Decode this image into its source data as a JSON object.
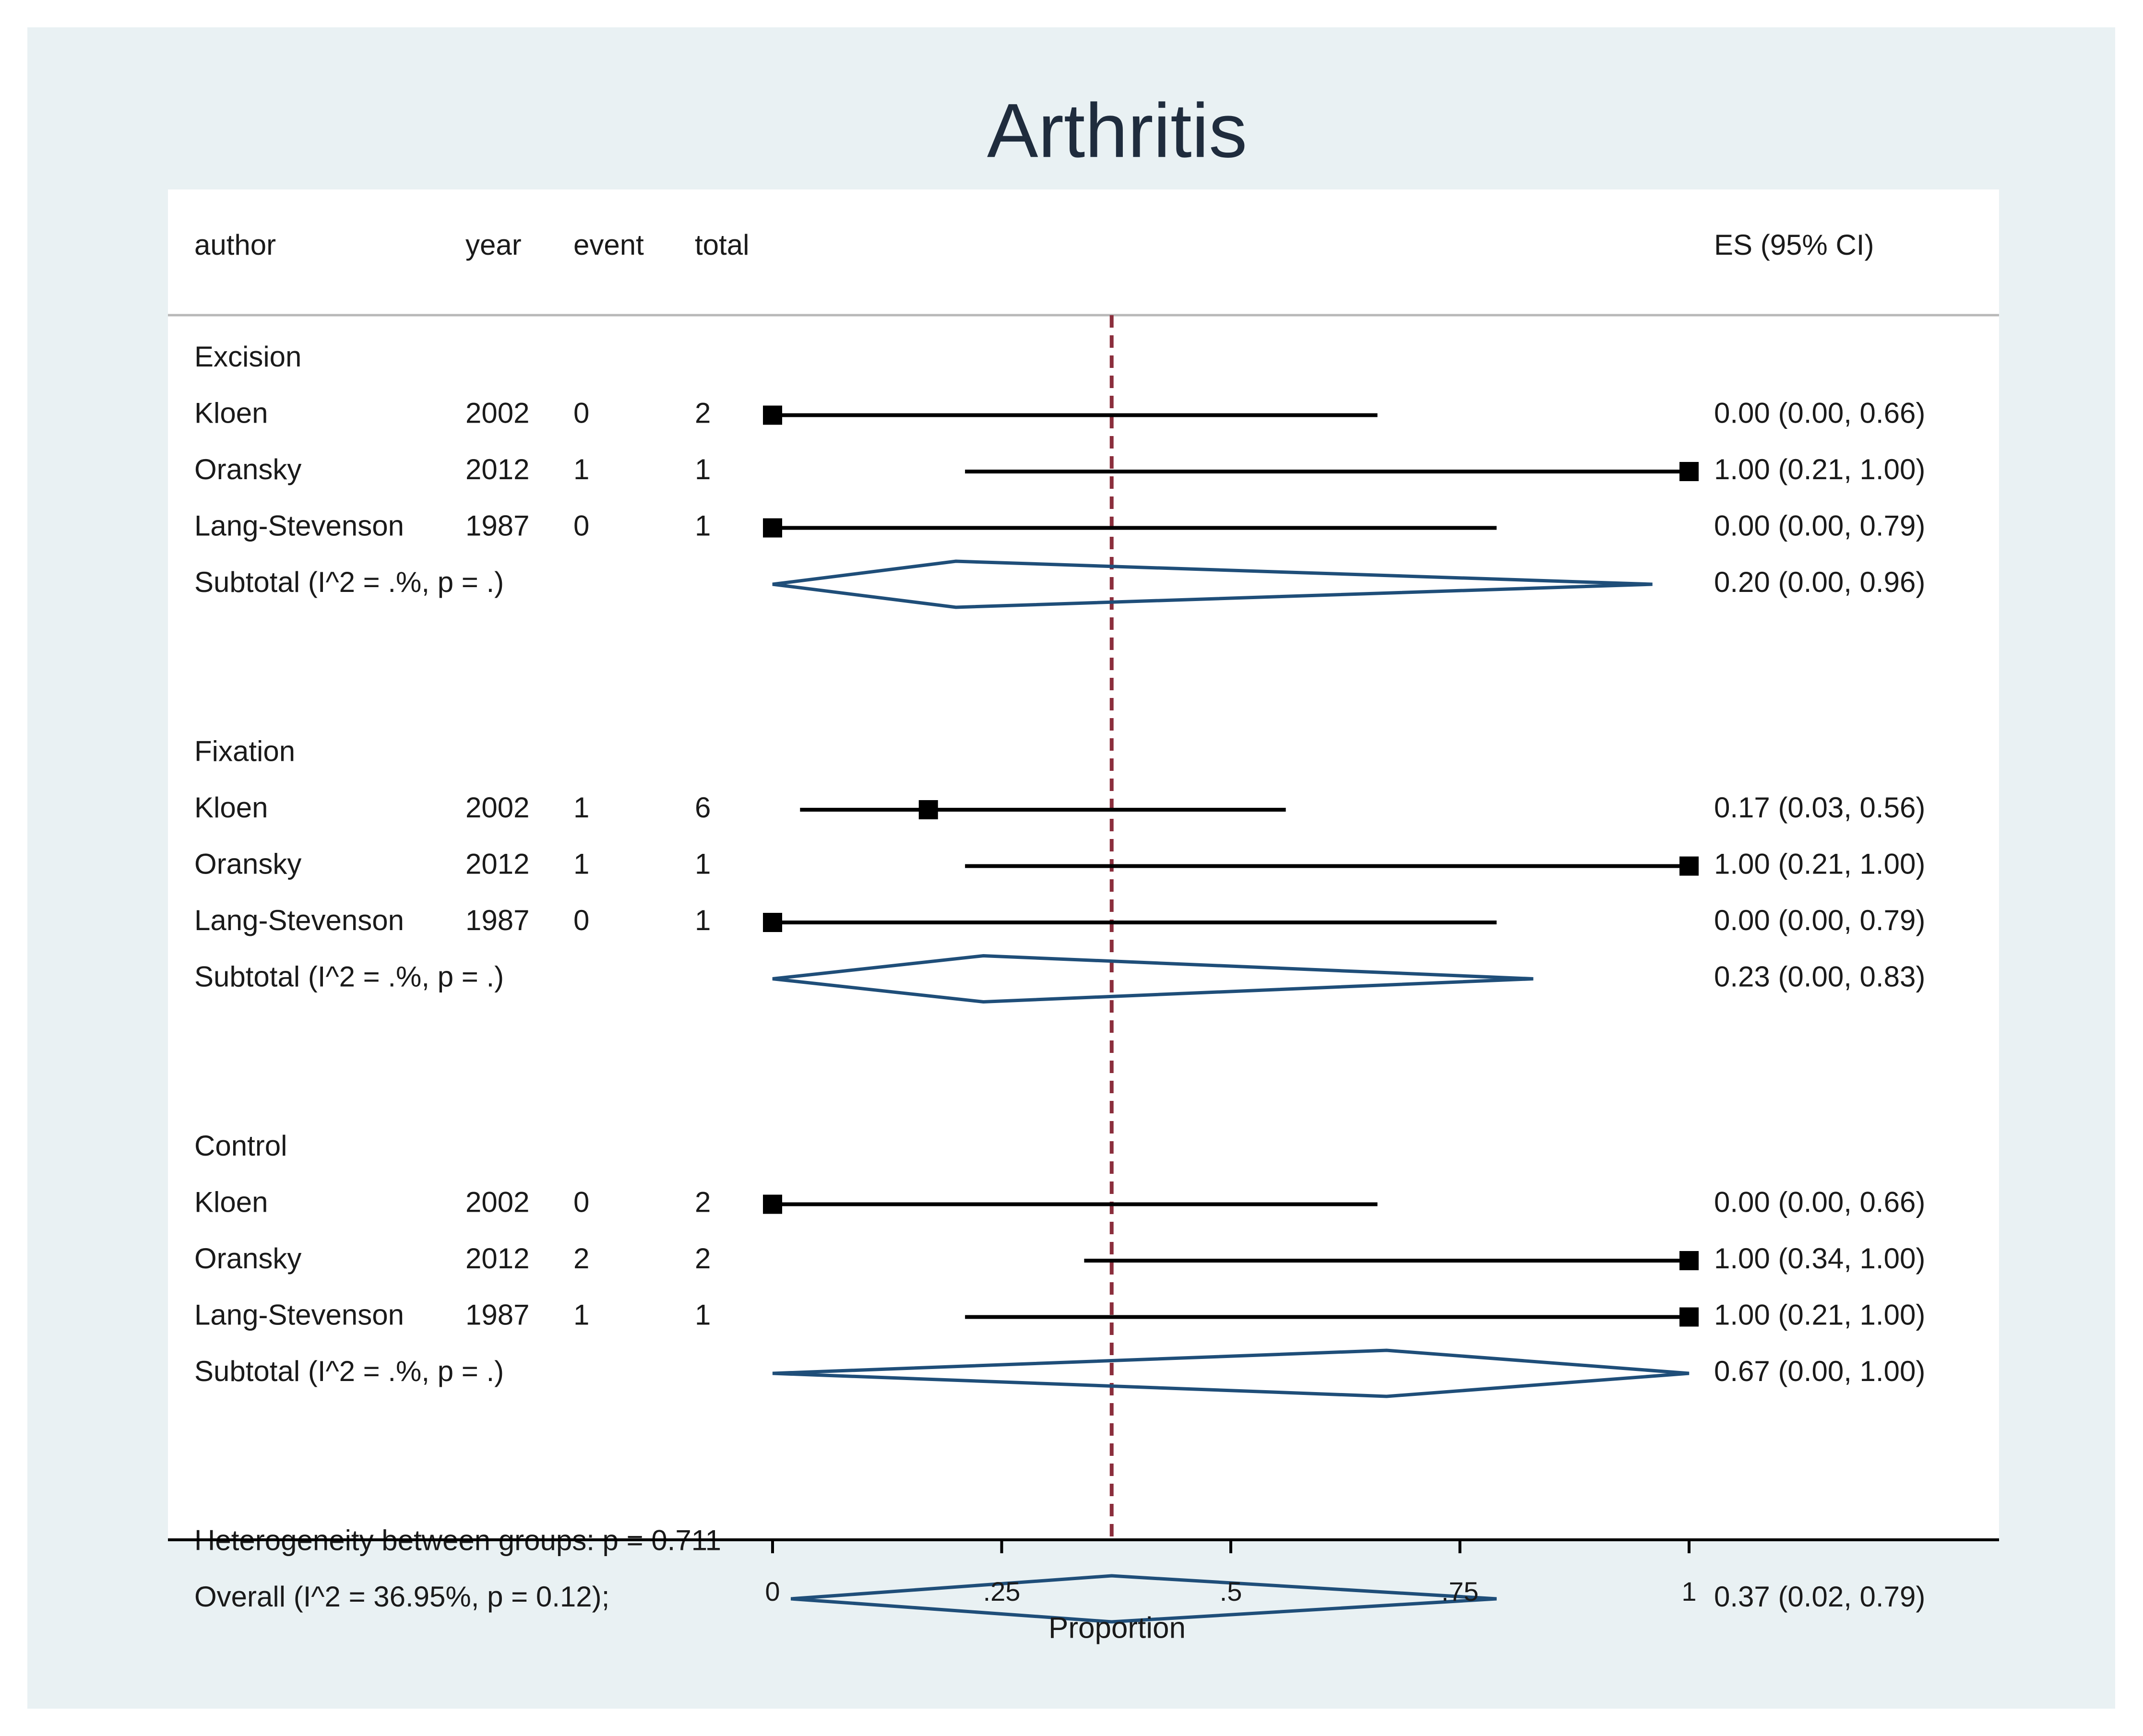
{
  "chart_data": {
    "type": "forest",
    "title": "Arthritis",
    "xlabel": "Proportion",
    "xlim": [
      0,
      1
    ],
    "x_ticks": [
      0,
      0.25,
      0.5,
      0.75,
      1
    ],
    "x_tick_labels": [
      "0",
      ".25",
      ".5",
      ".75",
      "1"
    ],
    "reference_line": 0.37,
    "columns": [
      "author",
      "year",
      "event",
      "total"
    ],
    "es_header": "ES (95% CI)",
    "groups": [
      {
        "name": "Excision",
        "studies": [
          {
            "author": "Kloen",
            "year": "2002",
            "event": "0",
            "total": "2",
            "es": 0.0,
            "lo": 0.0,
            "hi": 0.66,
            "label": "0.00 (0.00, 0.66)"
          },
          {
            "author": "Oransky",
            "year": "2012",
            "event": "1",
            "total": "1",
            "es": 1.0,
            "lo": 0.21,
            "hi": 1.0,
            "label": "1.00 (0.21, 1.00)"
          },
          {
            "author": "Lang-Stevenson",
            "year": "1987",
            "event": "0",
            "total": "1",
            "es": 0.0,
            "lo": 0.0,
            "hi": 0.79,
            "label": "0.00 (0.00, 0.79)"
          }
        ],
        "subtotal": {
          "text": "Subtotal  (I^2 = .%, p = .)",
          "es": 0.2,
          "lo": 0.0,
          "hi": 0.96,
          "label": "0.20 (0.00, 0.96)"
        }
      },
      {
        "name": "Fixation",
        "studies": [
          {
            "author": "Kloen",
            "year": "2002",
            "event": "1",
            "total": "6",
            "es": 0.17,
            "lo": 0.03,
            "hi": 0.56,
            "label": "0.17 (0.03, 0.56)"
          },
          {
            "author": "Oransky",
            "year": "2012",
            "event": "1",
            "total": "1",
            "es": 1.0,
            "lo": 0.21,
            "hi": 1.0,
            "label": "1.00 (0.21, 1.00)"
          },
          {
            "author": "Lang-Stevenson",
            "year": "1987",
            "event": "0",
            "total": "1",
            "es": 0.0,
            "lo": 0.0,
            "hi": 0.79,
            "label": "0.00 (0.00, 0.79)"
          }
        ],
        "subtotal": {
          "text": "Subtotal  (I^2 = .%, p = .)",
          "es": 0.23,
          "lo": 0.0,
          "hi": 0.83,
          "label": "0.23 (0.00, 0.83)"
        }
      },
      {
        "name": "Control",
        "studies": [
          {
            "author": "Kloen",
            "year": "2002",
            "event": "0",
            "total": "2",
            "es": 0.0,
            "lo": 0.0,
            "hi": 0.66,
            "label": "0.00 (0.00, 0.66)"
          },
          {
            "author": "Oransky",
            "year": "2012",
            "event": "2",
            "total": "2",
            "es": 1.0,
            "lo": 0.34,
            "hi": 1.0,
            "label": "1.00 (0.34, 1.00)"
          },
          {
            "author": "Lang-Stevenson",
            "year": "1987",
            "event": "1",
            "total": "1",
            "es": 1.0,
            "lo": 0.21,
            "hi": 1.0,
            "label": "1.00 (0.21, 1.00)"
          }
        ],
        "subtotal": {
          "text": "Subtotal  (I^2 = .%, p = .)",
          "es": 0.67,
          "lo": 0.0,
          "hi": 1.0,
          "label": "0.67 (0.00, 1.00)"
        }
      }
    ],
    "heterogeneity": "Heterogeneity between groups: p = 0.711",
    "overall": {
      "text": "Overall  (I^2 = 36.95%, p = 0.12);",
      "es": 0.37,
      "lo": 0.02,
      "hi": 0.79,
      "label": "0.37 (0.02, 0.79)"
    },
    "colors": {
      "background": "#e9f1f3",
      "plot_region": "#ffffff",
      "diamond": "#1f4e79",
      "reference_line": "#8b2e3c",
      "markers": "#000000",
      "title": "#1f2c3d"
    }
  }
}
